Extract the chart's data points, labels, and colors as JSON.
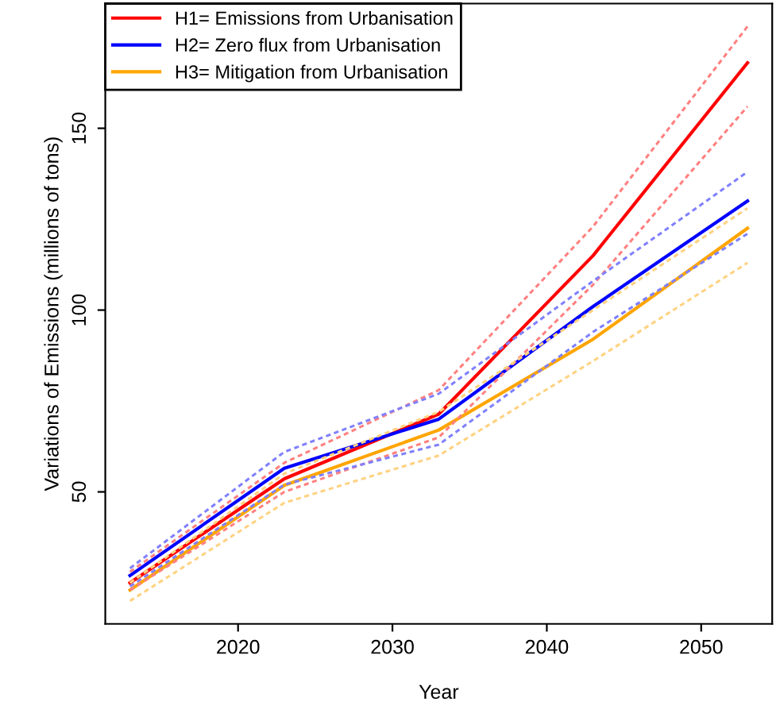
{
  "chart_data": {
    "type": "line",
    "xlabel": "Year",
    "ylabel": "Variations of Emissions (millions of tons)",
    "x": [
      2013,
      2023,
      2033,
      2043,
      2053
    ],
    "series": [
      {
        "color": "#ff8080",
        "line_style": "dashed",
        "values": [
          23,
          50,
          65,
          107,
          156
        ]
      },
      {
        "color": "#ff8080",
        "line_style": "dashed",
        "values": [
          28,
          58,
          78,
          123,
          178
        ]
      },
      {
        "color": "#8080ff",
        "line_style": "dashed",
        "values": [
          24,
          52,
          63,
          94,
          121
        ]
      },
      {
        "color": "#8080ff",
        "line_style": "dashed",
        "values": [
          29,
          61,
          77,
          108,
          138
        ]
      },
      {
        "color": "#ffd280",
        "line_style": "dashed",
        "values": [
          20,
          47,
          60,
          86,
          113
        ]
      },
      {
        "color": "#ffd280",
        "line_style": "dashed",
        "values": [
          25,
          55,
          72,
          100,
          128
        ]
      },
      {
        "name": "H1= Emissions from Urbanisation",
        "color": "#ff0000",
        "values": [
          25,
          53.6,
          71.4,
          115,
          168
        ]
      },
      {
        "name": "H2= Zero flux from Urbanisation",
        "color": "#0000ff",
        "values": [
          27,
          56.5,
          70,
          101,
          130
        ]
      },
      {
        "name": "H3= Mitigation from Urbanisation",
        "color": "#ffa500",
        "values": [
          23,
          51.8,
          67,
          92,
          122.5
        ]
      }
    ],
    "xlim": [
      2011.4,
      2054.6
    ],
    "ylim": [
      13.7,
      184.3
    ],
    "xticks": [
      2020,
      2030,
      2040,
      2050
    ],
    "yticks": [
      50,
      100,
      150
    ],
    "legend": "top left",
    "grid": false,
    "marker": "none",
    "line_style": "solid"
  }
}
